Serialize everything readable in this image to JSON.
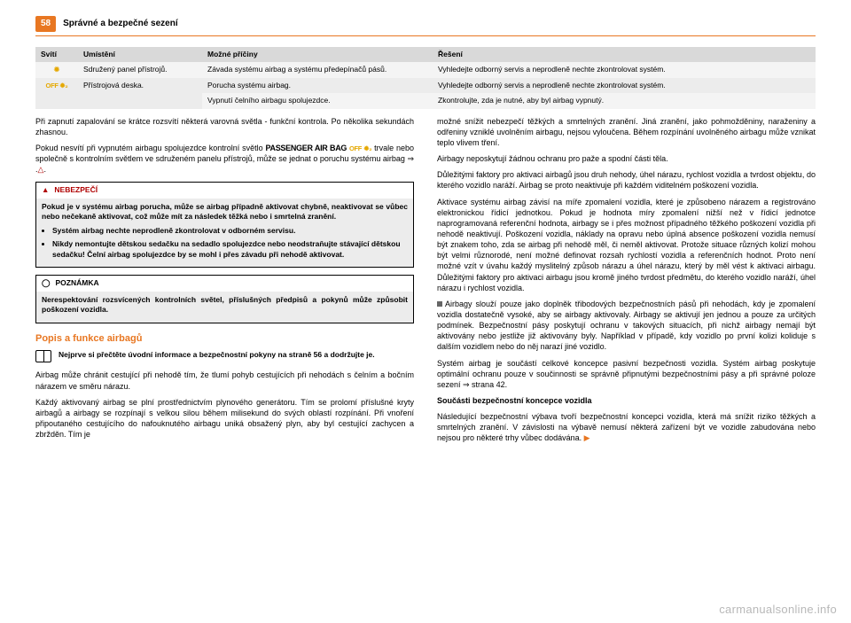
{
  "page": {
    "number": "58",
    "title": "Správné a bezpečné sezení"
  },
  "table": {
    "headers": [
      "Svítí",
      "Umístění",
      "Možné příčiny",
      "Řešení"
    ],
    "col_widths": [
      "48px",
      "140px",
      "260px",
      "auto"
    ],
    "header_bg": "#d9d9d9",
    "row_bg_odd": "#ececec",
    "row_bg_even": "#f4f4f4",
    "rows": [
      {
        "icon": "airbag",
        "location": "Sdružený panel přístrojů.",
        "cause": "Závada systému airbag a systému předepínačů pásů.",
        "fix": "Vyhledejte odborný servis a neprodleně nechte zkontrolovat systém."
      },
      {
        "icon": "off",
        "location": "Přístrojová deska.",
        "cause": "Porucha systému airbag.",
        "fix": "Vyhledejte odborný servis a neprodleně nechte zkontrolovat systém."
      },
      {
        "icon": "",
        "location": "",
        "cause": "Vypnutí čelního airbagu spolujezdce.",
        "fix": "Zkontrolujte, zda je nutné, aby byl airbag vypnutý."
      }
    ]
  },
  "left": {
    "p1": "Při zapnutí zapalování se krátce rozsvítí některá varovná světla - funkční kontrola. Po několika sekundách zhasnou.",
    "p2a": "Pokud nesvítí při vypnutém airbagu spolujezdce kontrolní světlo ",
    "p2_passenger": "PASSENGER AIR BAG",
    "p2b": "  trvale nebo společně s kontrolním světlem  ve sdruženém panelu přístrojů, může se jednat o poruchu systému airbag ⇒ .",
    "danger": {
      "label": "NEBEZPEČÍ",
      "lead": "Pokud je v systému airbag porucha, může se airbag případně aktivovat chybně, neaktivovat se vůbec nebo nečekaně aktivovat, což může mít za následek těžká nebo i smrtelná zranění.",
      "b1": "Systém airbag nechte neprodleně zkontrolovat v odborném servisu.",
      "b2": "Nikdy nemontujte dětskou sedačku na sedadlo spolujezdce nebo neodstraňujte stávající dětskou sedačku! Čelní airbag spolujezdce by se mohl i přes závadu při nehodě aktivovat."
    },
    "note": {
      "label": "POZNÁMKA",
      "text": "Nerespektování rozsvícených kontrolních světel, příslušných předpisů a pokynů může způsobit poškození vozidla."
    },
    "section": "Popis a funkce airbagů",
    "read": "Nejprve si přečtěte úvodní informace a bezpečnostní pokyny  na straně 56 a dodržujte je.",
    "p3": "Airbag může chránit cestující při nehodě tím, že tlumí pohyb cestujících při nehodách s čelním a bočním nárazem ve směru nárazu.",
    "p4": "Každý aktivovaný airbag se plní prostřednictvím plynového generátoru. Tím se prolomí příslušné kryty airbagů a airbagy se rozpínají s velkou silou během milisekund do svých oblastí rozpínání. Při vnoření připoutaného cestujícího do nafouknutého airbagu uniká obsažený plyn, aby byl cestující zachycen a zbržděn. Tím je"
  },
  "right": {
    "p1": "možné snížit nebezpečí těžkých a smrtelných zranění. Jiná zranění, jako pohmožděniny, naraženiny a odřeniny vzniklé uvolněním airbagu, nejsou vyloučena. Během rozpínání uvolněného airbagu může vznikat teplo vlivem tření.",
    "p2": "Airbagy neposkytují žádnou ochranu pro paže a spodní části těla.",
    "p3": "Důležitými faktory pro aktivaci airbagů jsou druh nehody, úhel nárazu, rychlost vozidla a tvrdost objektu, do kterého vozidlo naráží. Airbag se proto neaktivuje při každém viditelném poškození vozidla.",
    "p4": "Aktivace systému airbag závisí na míře zpomalení vozidla, které je způsobeno nárazem a registrováno elektronickou řídicí jednotkou. Pokud je hodnota míry zpomalení nižší než v řídicí jednotce naprogramovaná referenční hodnota, airbagy se i přes možnost případného těžkého poškození vozidla při nehodě neaktivují. Poškození vozidla, náklady na opravu nebo úplná absence poškození vozidla nemusí být znakem toho, zda se airbag při nehodě měl, či neměl aktivovat. Protože situace různých kolizí mohou být velmi různorodé, není možné definovat rozsah rychlostí vozidla a referenčních hodnot. Proto není možné vzít v úvahu každý myslitelný způsob nárazu a úhel nárazu, který by měl vést k aktivaci airbagu. Důležitými faktory pro aktivaci airbagu jsou kromě jiného tvrdost předmětu, do kterého vozidlo naráží, úhel nárazu i rychlost vozidla.",
    "p5": "Airbagy slouží pouze jako doplněk třibodových bezpečnostních pásů při nehodách, kdy je zpomalení vozidla dostatečně vysoké, aby se airbagy aktivovaly. Airbagy se aktivují jen jednou a pouze za určitých podmínek. Bezpečnostní pásy poskytují ochranu v takových situacích, při nichž airbagy nemají být aktivovány nebo jestliže již aktivovány byly. Například v případě, kdy vozidlo po první kolizi koliduje s dalším vozidlem nebo do něj narazí jiné vozidlo.",
    "p6": "Systém airbag je součástí celkové koncepce pasivní bezpečnosti vozidla. Systém airbag poskytuje optimální ochranu pouze v součinnosti se správně připnutými bezpečnostními pásy a při správné poloze sezení  ⇒ strana 42.",
    "sub": "Součásti bezpečnostní koncepce vozidla",
    "p7": "Následující bezpečnostní výbava tvoří bezpečnostní koncepci vozidla, která má snížit riziko těžkých a smrtelných zranění. V závislosti na výbavě nemusí některá zařízení být ve vozidle zabudována nebo nejsou pro některé trhy vůbec dodávána."
  },
  "watermark": "carmanualsonline.info",
  "colors": {
    "accent": "#e87722",
    "danger": "#b00000",
    "icon_amber": "#e5a800",
    "header_bg": "#d9d9d9",
    "cell_bg": "#ececec"
  }
}
